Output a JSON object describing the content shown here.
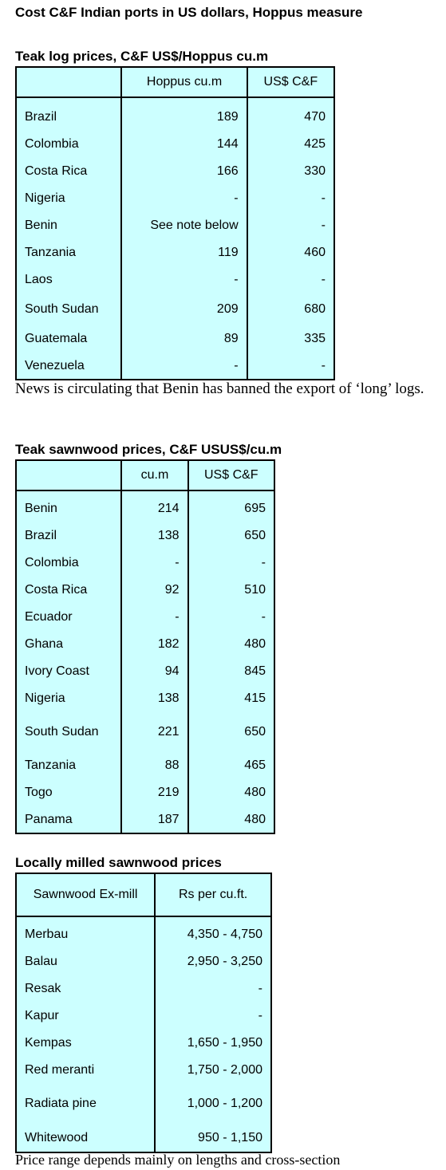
{
  "page_title": "Cost C&F Indian ports in US dollars, Hoppus measure",
  "teak_logs": {
    "title": "Teak log prices, C&F US$/Hoppus cu.m",
    "headers": [
      "",
      "Hoppus cu.m",
      "US$ C&F"
    ],
    "rows": [
      {
        "country": "Brazil",
        "hoppus": "189",
        "usd": "470"
      },
      {
        "country": "Colombia",
        "hoppus": "144",
        "usd": "425"
      },
      {
        "country": "Costa Rica",
        "hoppus": "166",
        "usd": "330"
      },
      {
        "country": "Nigeria",
        "hoppus": "-",
        "usd": "-"
      },
      {
        "country": "Benin",
        "hoppus": "See note below",
        "usd": "-"
      },
      {
        "country": "Tanzania",
        "hoppus": "119",
        "usd": "460"
      },
      {
        "country": "Laos",
        "hoppus": "-",
        "usd": "-"
      },
      {
        "country": "South Sudan",
        "hoppus": "209",
        "usd": "680"
      },
      {
        "country": "Guatemala",
        "hoppus": "89",
        "usd": "335"
      },
      {
        "country": "Venezuela",
        "hoppus": "-",
        "usd": "-"
      }
    ],
    "note": "News is circulating that Benin has banned the export of ‘long’ logs."
  },
  "teak_sawnwood": {
    "title": "Teak sawnwood prices, C&F USUS$/cu.m",
    "headers": [
      "",
      "cu.m",
      "US$ C&F"
    ],
    "rows": [
      {
        "country": "Benin",
        "cum": "214",
        "usd": "695"
      },
      {
        "country": "Brazil",
        "cum": "138",
        "usd": "650"
      },
      {
        "country": "Colombia",
        "cum": "-",
        "usd": "-"
      },
      {
        "country": "Costa Rica",
        "cum": "92",
        "usd": "510"
      },
      {
        "country": "Ecuador",
        "cum": "-",
        "usd": "-"
      },
      {
        "country": "Ghana",
        "cum": "182",
        "usd": "480"
      },
      {
        "country": "Ivory Coast",
        "cum": "94",
        "usd": "845"
      },
      {
        "country": "Nigeria",
        "cum": "138",
        "usd": "415"
      },
      {
        "country": "South Sudan",
        "cum": "221",
        "usd": "650"
      },
      {
        "country": "Tanzania",
        "cum": "88",
        "usd": "465"
      },
      {
        "country": "Togo",
        "cum": "219",
        "usd": "480"
      },
      {
        "country": "Panama",
        "cum": "187",
        "usd": "480"
      }
    ]
  },
  "local_sawnwood": {
    "title": "Locally milled sawnwood prices",
    "headers": [
      "Sawnwood Ex-mill",
      "Rs per cu.ft."
    ],
    "rows": [
      {
        "species": "Merbau",
        "price": "4,350 - 4,750"
      },
      {
        "species": "Balau",
        "price": "2,950 - 3,250"
      },
      {
        "species": "Resak",
        "price": "-"
      },
      {
        "species": "Kapur",
        "price": "-"
      },
      {
        "species": "Kempas",
        "price": "1,650 - 1,950"
      },
      {
        "species": "Red meranti",
        "price": "1,750 - 2,000"
      },
      {
        "species": "Radiata pine",
        "price": "1,000 - 1,200"
      },
      {
        "species": "Whitewood",
        "price": "950 - 1,150"
      }
    ],
    "note": "Price range depends mainly on lengths and cross-section"
  }
}
